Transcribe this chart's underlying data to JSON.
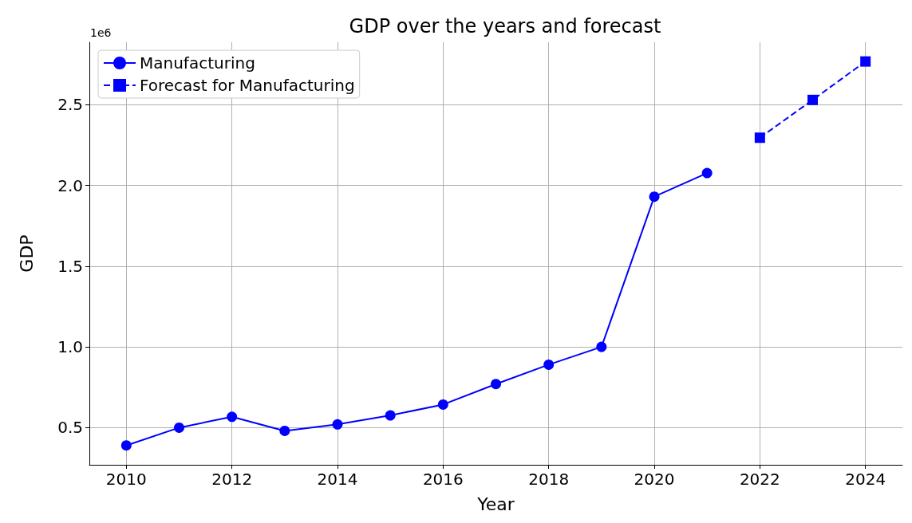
{
  "chart_data": {
    "type": "line",
    "title": "GDP over the years and forecast",
    "xlabel": "Year",
    "ylabel": "GDP",
    "annotations": [
      "1e6"
    ],
    "xlim": [
      2009.3,
      2024.7
    ],
    "xticks": [
      2010,
      2012,
      2014,
      2016,
      2018,
      2020,
      2022,
      2024
    ],
    "ylim": [
      0.27,
      2.886
    ],
    "yticks": [
      0.5,
      {
        "value": 1,
        "label": "1.0"
      },
      1.5,
      {
        "value": 2,
        "label": "2.0"
      },
      2.5
    ],
    "grid": true,
    "legend": "top left",
    "series": [
      {
        "name": "Manufacturing",
        "color": "#0000ff",
        "marker": "circle",
        "line_style": "solid",
        "x": [
          2010,
          2011,
          2012,
          2013,
          2014,
          2015,
          2016,
          2017,
          2018,
          2019,
          2020,
          2021
        ],
        "values": [
          0.39,
          0.5,
          0.567,
          0.48,
          0.52,
          0.576,
          0.643,
          0.77,
          0.89,
          1.0,
          1.93,
          2.076
        ]
      },
      {
        "name": "Forecast for Manufacturing",
        "color": "#0000ff",
        "marker": "square",
        "line_style": "dashed",
        "x": [
          2022,
          2023,
          2024
        ],
        "values": [
          2.295,
          2.529,
          2.767
        ]
      }
    ]
  }
}
